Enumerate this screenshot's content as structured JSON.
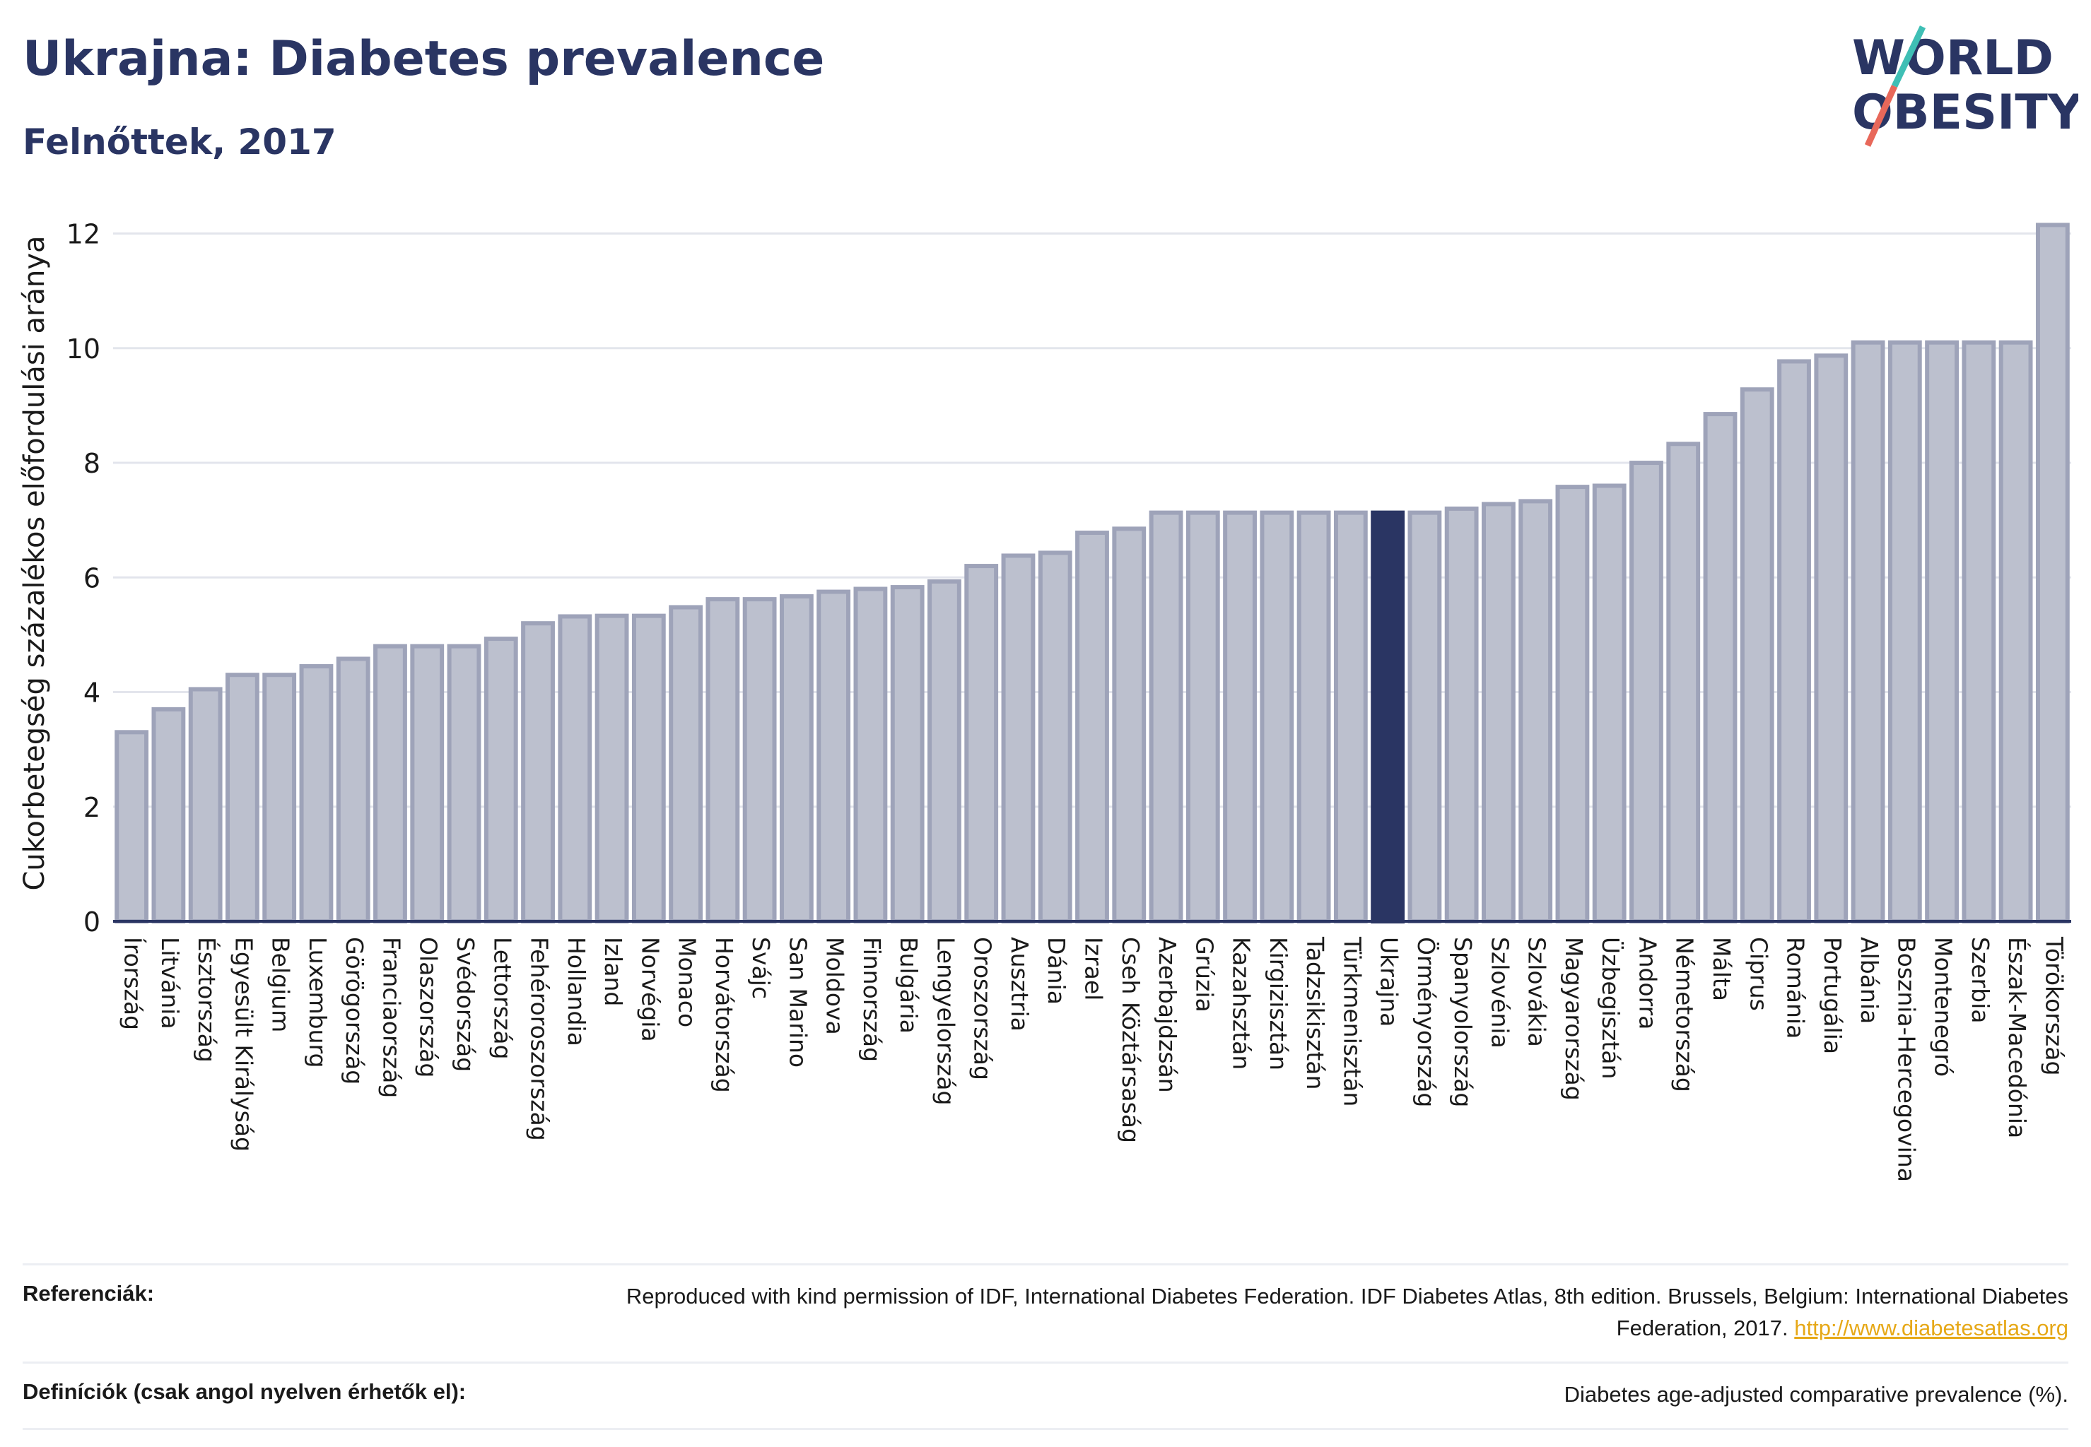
{
  "header": {
    "title": "Ukrajna: Diabetes prevalence",
    "subtitle": "Felnőttek, 2017"
  },
  "logo": {
    "line1": "WORLD",
    "line2": "OBESITY",
    "slash_colors": [
      "#3fbfb5",
      "#e8685a"
    ],
    "text_color": "#2a3563"
  },
  "colors": {
    "bar": "#bcc0ce",
    "bar_stroke": "#9ea3b9",
    "highlight": "#2a3563",
    "grid": "#e3e5ec",
    "axis": "#2a3563"
  },
  "chart_data": {
    "type": "bar",
    "title": "Ukrajna: Diabetes prevalence",
    "subtitle": "Felnőttek, 2017",
    "ylabel": "Cukorbetegség százalékos előfordulási aránya",
    "xlabel": "",
    "ylim": [
      0,
      12.5
    ],
    "yticks": [
      0,
      2,
      4,
      6,
      8,
      10,
      12
    ],
    "grid": true,
    "highlight": "Ukrajna",
    "categories": [
      "Írország",
      "Litvánia",
      "Észtország",
      "Egyesült Királyság",
      "Belgium",
      "Luxemburg",
      "Görögország",
      "Franciaország",
      "Olaszország",
      "Svédország",
      "Lettország",
      "Fehéroroszország",
      "Hollandia",
      "Izland",
      "Norvégia",
      "Monaco",
      "Horvátország",
      "Svájc",
      "San Marino",
      "Moldova",
      "Finnország",
      "Bulgária",
      "Lengyelország",
      "Oroszország",
      "Ausztria",
      "Dánia",
      "Izrael",
      "Cseh Köztársaság",
      "Azerbajdzsán",
      "Grúzia",
      "Kazahsztán",
      "Kirgizisztán",
      "Tadzsikisztán",
      "Türkmenisztán",
      "Ukrajna",
      "Örményország",
      "Spanyolország",
      "Szlovénia",
      "Szlovákia",
      "Magyarország",
      "Üzbegisztán",
      "Andorra",
      "Németország",
      "Málta",
      "Ciprus",
      "Románia",
      "Portugália",
      "Albánia",
      "Bosznia-Hercegovina",
      "Montenegró",
      "Szerbia",
      "Észak-Macedónia",
      "Törökország"
    ],
    "values": [
      3.3,
      3.7,
      4.05,
      4.3,
      4.3,
      4.45,
      4.58,
      4.8,
      4.8,
      4.8,
      4.93,
      5.2,
      5.32,
      5.33,
      5.33,
      5.48,
      5.62,
      5.62,
      5.67,
      5.75,
      5.8,
      5.83,
      5.93,
      6.2,
      6.38,
      6.43,
      6.78,
      6.85,
      7.13,
      7.13,
      7.13,
      7.13,
      7.13,
      7.13,
      7.13,
      7.13,
      7.2,
      7.28,
      7.33,
      7.58,
      7.6,
      8.0,
      8.33,
      8.85,
      9.28,
      9.77,
      9.87,
      10.1,
      10.1,
      10.1,
      10.1,
      10.1,
      12.15
    ]
  },
  "footer": {
    "references_label": "Referenciák:",
    "references_text": "Reproduced with kind permission of IDF, International Diabetes Federation. IDF Diabetes Atlas, 8th edition. Brussels, Belgium: International Diabetes Federation, 2017.",
    "references_link": "http://www.diabetesatlas.org",
    "definitions_label": "Definíciók (csak angol nyelven érhetők el):",
    "definitions_text": "Diabetes age-adjusted comparative prevalence (%)."
  }
}
